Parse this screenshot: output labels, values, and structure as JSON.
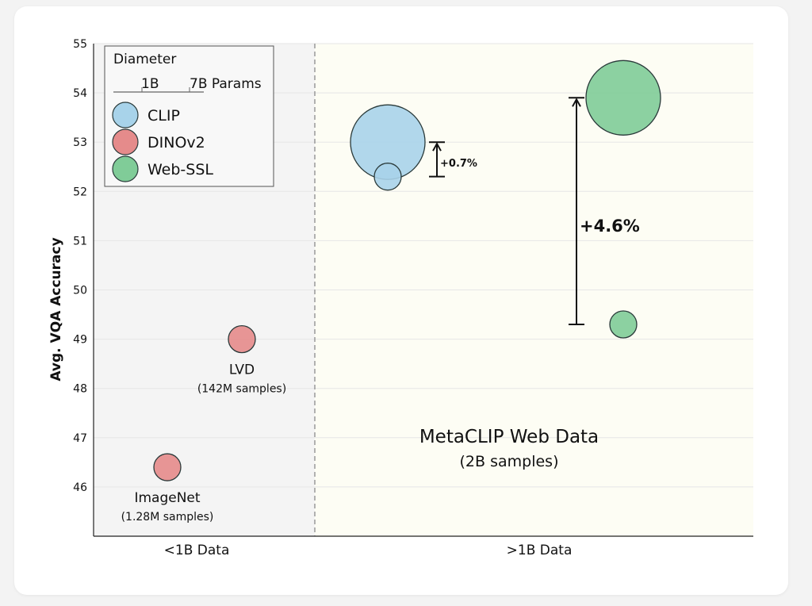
{
  "chart_data": {
    "type": "scatter",
    "variant": "bubble",
    "title": "",
    "xlabel": "",
    "ylabel": "Avg. VQA Accuracy",
    "ylim": [
      45,
      55
    ],
    "yticks": [
      46,
      47,
      48,
      49,
      50,
      51,
      52,
      53,
      54,
      55
    ],
    "categories": [
      "<1B Data",
      ">1B Data"
    ],
    "grid": "horizontal",
    "legend": {
      "placement": "top-left",
      "size_title": "Diameter",
      "size_labels": [
        "1B",
        "7B Params"
      ],
      "entries": [
        {
          "name": "CLIP",
          "color": "#a8d3ea"
        },
        {
          "name": "DINOv2",
          "color": "#e58b8b"
        },
        {
          "name": "Web-SSL",
          "color": "#80cc98"
        }
      ]
    },
    "series": [
      {
        "name": "CLIP",
        "color": "#a8d3ea",
        "points": [
          {
            "category": ">1B Data",
            "y": 52.3,
            "params": "1B"
          },
          {
            "category": ">1B Data",
            "y": 53.0,
            "params": "7B"
          }
        ]
      },
      {
        "name": "DINOv2",
        "color": "#e58b8b",
        "points": [
          {
            "category": "<1B Data",
            "y": 46.4,
            "params": "1B",
            "label": "ImageNet",
            "sublabel": "(1.28M samples)"
          },
          {
            "category": "<1B Data",
            "y": 49.0,
            "params": "1B",
            "label": "LVD",
            "sublabel": "(142M samples)"
          }
        ]
      },
      {
        "name": "Web-SSL",
        "color": "#80cc98",
        "points": [
          {
            "category": ">1B Data",
            "y": 49.3,
            "params": "1B"
          },
          {
            "category": ">1B Data",
            "y": 53.9,
            "params": "7B"
          }
        ]
      }
    ],
    "annotations": [
      {
        "text": "+0.7%",
        "from": 52.3,
        "to": 53.0
      },
      {
        "text": "+4.6%",
        "from": 49.3,
        "to": 53.9
      }
    ],
    "region_labels": {
      "title": "MetaCLIP Web Data",
      "subtitle": "(2B samples)"
    },
    "region_colors": {
      "left": "#f4f4f4",
      "right": "#fdfdf4"
    }
  }
}
